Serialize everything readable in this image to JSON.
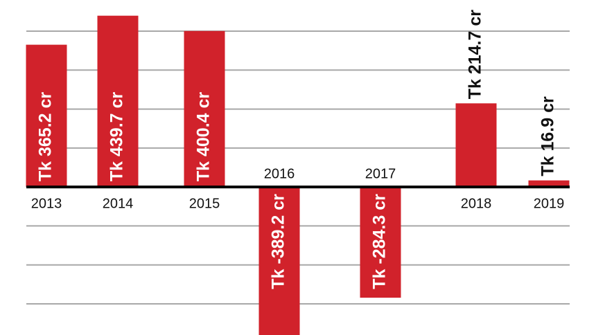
{
  "chart_data": {
    "type": "bar",
    "categories": [
      "2013",
      "2014",
      "2015",
      "2016",
      "2017",
      "2018",
      "2019"
    ],
    "values": [
      365.2,
      439.7,
      400.4,
      -389.2,
      -284.3,
      214.7,
      16.9
    ],
    "value_labels": [
      "Tk 365.2 cr",
      "Tk 439.7 cr",
      "Tk 400.4 cr",
      "Tk -389.2 cr",
      "Tk -284.3 cr",
      "Tk 214.7 cr",
      "Tk 16.9 cr"
    ],
    "color": "#d1222b",
    "ylim": [
      -380,
      480
    ],
    "yticks": [
      -300,
      -200,
      -100,
      0,
      100,
      200,
      300,
      400
    ],
    "grid": true
  }
}
